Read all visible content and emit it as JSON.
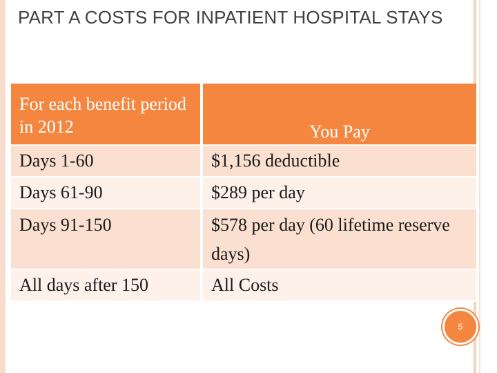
{
  "slide": {
    "title": "PART A COSTS FOR INPATIENT HOSPITAL STAYS",
    "page_number": "5"
  },
  "table": {
    "header": {
      "col1": "For each benefit period in 2012",
      "col2": "You Pay"
    },
    "rows": [
      {
        "period": "Days 1-60",
        "pay": "$1,156 deductible"
      },
      {
        "period": "Days 61-90",
        "pay": "$289 per day"
      },
      {
        "period": "Days 91-150",
        "pay": "$578 per day (60 lifetime reserve days)"
      },
      {
        "period": "All days after 150",
        "pay": "All Costs"
      }
    ]
  },
  "colors": {
    "accent": "#f4863f",
    "row_shade_a": "#fbe0d2",
    "row_shade_b": "#fdf1ea",
    "title_text": "#404040"
  }
}
